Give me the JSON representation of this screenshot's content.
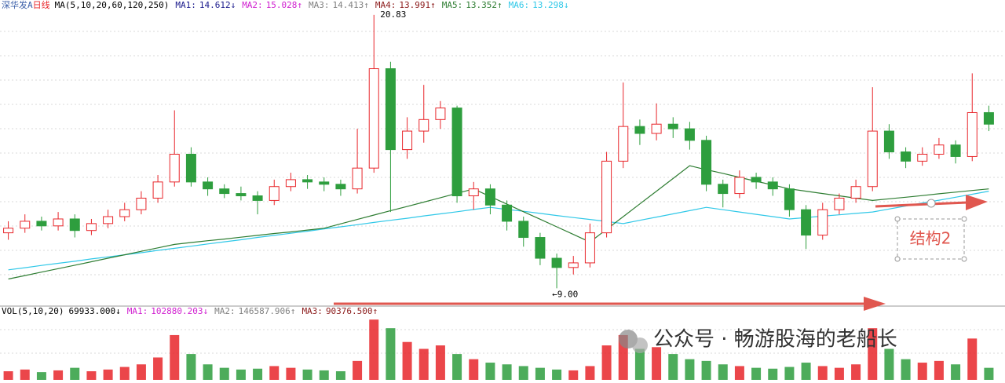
{
  "chart_data": [
    {
      "type": "candlestick",
      "title": "深华发A",
      "period": "日线",
      "indicator": "MA(5,10,20,60,120,250)",
      "readouts": [
        {
          "name": "MA1:",
          "text": "14.612↓",
          "color": "#1a1a8c"
        },
        {
          "name": "MA2:",
          "text": "15.028↑",
          "color": "#d020d0"
        },
        {
          "name": "MA3:",
          "text": "14.413↑",
          "color": "#808080"
        },
        {
          "name": "MA4:",
          "text": "13.991↑",
          "color": "#8b1a1a"
        },
        {
          "name": "MA5:",
          "text": "13.352↑",
          "color": "#2e7d32"
        },
        {
          "name": "MA6:",
          "text": "13.298↓",
          "color": "#30c8e8"
        }
      ],
      "high_label": "20.83",
      "low_label": "←9.00",
      "open": [
        11.4,
        11.6,
        11.9,
        11.7,
        12.0,
        11.5,
        11.8,
        12.1,
        12.4,
        12.9,
        13.6,
        14.8,
        13.6,
        13.3,
        13.1,
        13.0,
        12.8,
        13.4,
        13.7,
        13.6,
        13.5,
        13.3,
        14.2,
        18.5,
        15.0,
        15.8,
        16.3,
        16.8,
        13.0,
        13.3,
        12.6,
        11.9,
        11.2,
        10.3,
        9.9,
        10.1,
        11.4,
        14.5,
        16.0,
        15.7,
        16.1,
        15.9,
        15.4,
        13.5,
        13.1,
        13.8,
        13.6,
        13.3,
        12.4,
        11.3,
        12.4,
        12.9,
        13.4,
        15.8,
        14.9,
        14.5,
        14.8,
        15.2,
        14.7,
        16.6
      ],
      "high": [
        11.9,
        12.2,
        12.1,
        12.3,
        12.2,
        12.0,
        12.4,
        12.7,
        13.2,
        13.9,
        16.7,
        15.1,
        13.8,
        13.5,
        13.4,
        13.2,
        13.7,
        14.0,
        13.9,
        13.8,
        13.7,
        15.9,
        20.83,
        18.8,
        16.4,
        17.8,
        17.1,
        16.9,
        13.6,
        13.5,
        12.8,
        12.1,
        11.4,
        10.5,
        10.4,
        11.8,
        14.9,
        17.9,
        16.3,
        17.0,
        16.4,
        16.2,
        15.6,
        13.7,
        14.1,
        14.0,
        13.8,
        13.5,
        12.6,
        12.7,
        13.1,
        13.7,
        17.7,
        16.1,
        15.1,
        15.1,
        15.5,
        15.4,
        18.3,
        16.9
      ],
      "low": [
        11.1,
        11.4,
        11.5,
        11.5,
        11.2,
        11.3,
        11.6,
        11.9,
        12.2,
        12.7,
        13.4,
        13.4,
        13.0,
        12.9,
        12.8,
        12.2,
        12.6,
        13.2,
        13.3,
        13.2,
        13.0,
        13.1,
        14.0,
        12.3,
        14.6,
        15.3,
        15.9,
        12.7,
        12.4,
        12.2,
        11.5,
        10.8,
        10.0,
        9.0,
        9.6,
        9.9,
        11.2,
        14.2,
        15.2,
        15.4,
        15.5,
        15.0,
        13.2,
        12.5,
        12.9,
        13.3,
        13.0,
        12.1,
        10.7,
        11.1,
        12.2,
        12.7,
        13.2,
        14.6,
        14.2,
        14.3,
        14.6,
        14.4,
        14.5,
        15.8
      ],
      "close": [
        11.6,
        11.9,
        11.7,
        12.0,
        11.5,
        11.8,
        12.1,
        12.4,
        12.9,
        13.6,
        14.8,
        13.6,
        13.3,
        13.1,
        13.0,
        12.8,
        13.4,
        13.7,
        13.6,
        13.5,
        13.3,
        14.2,
        18.5,
        15.0,
        15.8,
        16.3,
        16.8,
        13.0,
        13.3,
        12.6,
        11.9,
        11.2,
        10.3,
        9.9,
        10.1,
        11.4,
        14.5,
        16.0,
        15.7,
        16.1,
        15.9,
        15.4,
        13.5,
        13.1,
        13.8,
        13.6,
        13.3,
        12.4,
        11.3,
        12.4,
        12.9,
        13.4,
        15.8,
        14.9,
        14.5,
        14.8,
        15.2,
        14.7,
        16.6,
        16.1
      ],
      "up_color": "#e8262a",
      "down_color": "#2e9e3e",
      "lines": [
        {
          "color": "#30c8e8",
          "values": [
            9.8,
            9.89,
            9.99,
            10.08,
            10.17,
            10.27,
            10.36,
            10.45,
            10.54,
            10.64,
            10.73,
            10.82,
            10.92,
            11.01,
            11.1,
            11.2,
            11.29,
            11.38,
            11.47,
            11.57,
            11.66,
            11.75,
            11.85,
            11.94,
            12.03,
            12.13,
            12.22,
            12.31,
            12.41,
            12.5,
            12.41,
            12.33,
            12.24,
            12.15,
            12.06,
            11.98,
            11.89,
            11.8,
            11.94,
            12.08,
            12.22,
            12.36,
            12.5,
            12.4,
            12.3,
            12.2,
            12.1,
            12.0,
            12.06,
            12.12,
            12.18,
            12.24,
            12.3,
            12.43,
            12.56,
            12.69,
            12.81,
            12.94,
            13.07,
            13.2
          ]
        },
        {
          "color": "#2e7d32",
          "values": [
            9.4,
            9.55,
            9.7,
            9.85,
            10.0,
            10.15,
            10.3,
            10.45,
            10.6,
            10.75,
            10.9,
            10.98,
            11.06,
            11.13,
            11.21,
            11.29,
            11.37,
            11.44,
            11.52,
            11.6,
            11.79,
            11.98,
            12.17,
            12.36,
            12.54,
            12.73,
            12.92,
            13.11,
            13.3,
            12.97,
            12.64,
            12.31,
            11.99,
            11.66,
            11.33,
            11.0,
            11.55,
            12.1,
            12.65,
            13.2,
            13.75,
            14.3,
            14.13,
            13.97,
            13.8,
            13.63,
            13.47,
            13.3,
            13.2,
            13.1,
            13.0,
            12.9,
            12.8,
            12.87,
            12.94,
            13.01,
            13.09,
            13.16,
            13.23,
            13.3
          ]
        }
      ],
      "ylim": [
        8.4,
        21.2
      ]
    },
    {
      "type": "bar",
      "indicator": "VOL(5,10,20)",
      "current": "69933.000↓",
      "readouts": [
        {
          "name": "MA1:",
          "text": "102880.203↓",
          "color": "#d020d0"
        },
        {
          "name": "MA2:",
          "text": "146587.906↑",
          "color": "#808080"
        },
        {
          "name": "MA3:",
          "text": "90376.500↑",
          "color": "#8b1a1a"
        }
      ],
      "values": [
        50000,
        60000,
        45000,
        55000,
        70000,
        50000,
        60000,
        75000,
        90000,
        130000,
        260000,
        150000,
        90000,
        70000,
        60000,
        65000,
        80000,
        70000,
        60000,
        55000,
        50000,
        110000,
        350000,
        300000,
        220000,
        180000,
        200000,
        150000,
        120000,
        100000,
        90000,
        80000,
        70000,
        60000,
        55000,
        80000,
        200000,
        260000,
        180000,
        190000,
        150000,
        120000,
        110000,
        90000,
        80000,
        70000,
        65000,
        75000,
        100000,
        80000,
        70000,
        90000,
        300000,
        180000,
        120000,
        100000,
        110000,
        90000,
        240000,
        69933
      ],
      "ylim": [
        0,
        360000
      ]
    }
  ],
  "overlay": {
    "label": "结构2",
    "watermark": "公众号 · 畅游股海的老船长"
  }
}
